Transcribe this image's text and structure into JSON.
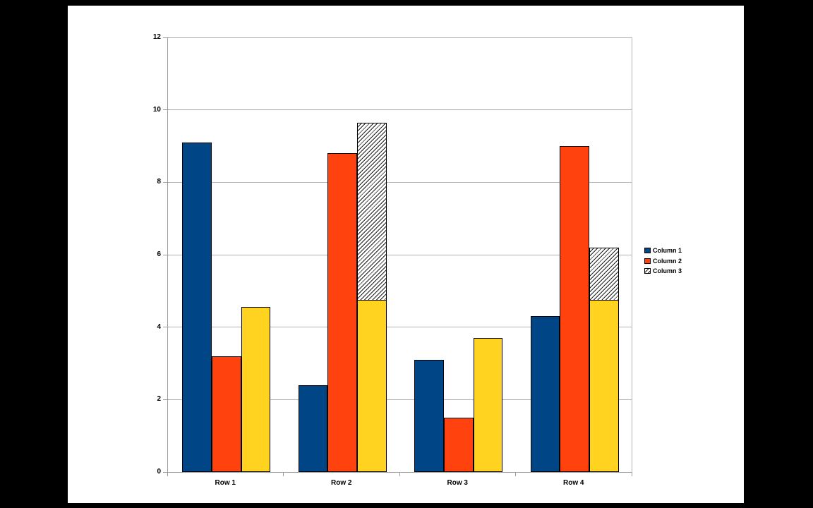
{
  "frame": {
    "background": "#000000",
    "content_background": "#ffffff"
  },
  "chart_data": {
    "type": "bar",
    "title": "",
    "categories": [
      "Row 1",
      "Row 2",
      "Row 3",
      "Row 4"
    ],
    "series": [
      {
        "name": "Column 1",
        "color": "#004586",
        "values": [
          9.1,
          2.4,
          3.1,
          4.3
        ]
      },
      {
        "name": "Column 2",
        "color": "#ff420e",
        "values": [
          3.2,
          8.8,
          1.5,
          9.0
        ]
      },
      {
        "name": "Column 3",
        "color": "#ffd320",
        "values": [
          4.55,
          9.65,
          3.7,
          6.2
        ],
        "fill_note": "yellow fill; in Row 2 and Row 4 the portion above the yellow base is drawn as black-on-white diagonal hatching (legend swatch is hatched)",
        "segments": [
          {
            "yellow_top": 4.55,
            "hatch_top": null
          },
          {
            "yellow_top": 4.75,
            "hatch_top": 9.65
          },
          {
            "yellow_top": 3.7,
            "hatch_top": null
          },
          {
            "yellow_top": 4.75,
            "hatch_top": 6.2
          }
        ]
      }
    ],
    "xlabel": "",
    "ylabel": "",
    "ylim": [
      0,
      12
    ],
    "y_ticks": [
      "0",
      "2",
      "4",
      "6",
      "8",
      "10",
      "12"
    ],
    "grid": "horizontal",
    "legend_position": "right",
    "colors": {
      "grid": "#b3b3b3",
      "axis": "#9e9e9e",
      "text": "#000000",
      "bar_border": "#000000",
      "hatch_line": "#1a1a1a"
    }
  }
}
